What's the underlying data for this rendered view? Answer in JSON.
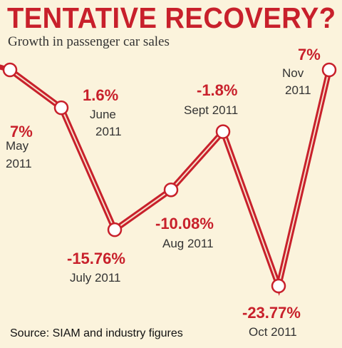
{
  "header": {
    "title": "TENTATIVE RECOVERY?",
    "subtitle": "Growth in passenger car sales"
  },
  "footer": {
    "source": "Source: SIAM and industry figures"
  },
  "colors": {
    "line": "#c8202b",
    "marker_fill": "#ffffff",
    "background": "#fbf3dc"
  },
  "chart_data": {
    "type": "line",
    "title": "TENTATIVE RECOVERY?",
    "subtitle": "Growth in passenger car sales",
    "x": [
      "May 2011",
      "June 2011",
      "July 2011",
      "Aug 2011",
      "Sept 2011",
      "Oct 2011",
      "Nov 2011"
    ],
    "series": [
      {
        "values": [
          7,
          1.6,
          -15.76,
          -10.08,
          -1.8,
          -23.77,
          7
        ]
      }
    ],
    "data_labels": [
      {
        "value": "7%",
        "month": "May",
        "year": "2011"
      },
      {
        "value": "1.6%",
        "month": "June",
        "year": "2011"
      },
      {
        "value": "-15.76%",
        "month": "July 2011",
        "year": ""
      },
      {
        "value": "-10.08%",
        "month": "Aug 2011",
        "year": ""
      },
      {
        "value": "-1.8%",
        "month": "Sept 2011",
        "year": ""
      },
      {
        "value": "-23.77%",
        "month": "Oct 2011",
        "year": ""
      },
      {
        "value": "7%",
        "month": "Nov",
        "year": "2011"
      }
    ],
    "source": "Source: SIAM and industry figures"
  }
}
